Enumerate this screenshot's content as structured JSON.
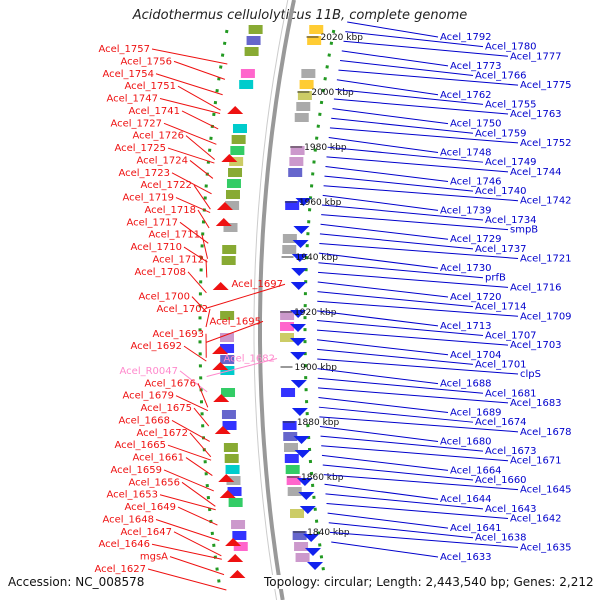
{
  "title": "Acidothermus cellulolyticus 11B, complete genome",
  "footer": {
    "accession": "Accession: NC_008578",
    "topology": "Topology: circular; Length: 2,443,540 bp; Genes: 2,212"
  },
  "colors": {
    "left_label": "#ee1111",
    "left_label_special": "#ff88cc",
    "right_label": "#0000cc",
    "tick_label": "#111111",
    "backbone": "#999999",
    "dots": "#229922"
  },
  "ticks": [
    "2020 kbp",
    "2000 kbp",
    "1980 kbp",
    "1960 kbp",
    "1940 kbp",
    "1920 kbp",
    "1900 kbp",
    "1880 kbp",
    "1860 kbp",
    "1840 kbp"
  ],
  "left_labels": [
    "Acel_1757",
    "Acel_1756",
    "Acel_1754",
    "Acel_1751",
    "Acel_1747",
    "Acel_1741",
    "Acel_1727",
    "Acel_1726",
    "Acel_1725",
    "Acel_1724",
    "Acel_1723",
    "Acel_1722",
    "Acel_1719",
    "Acel_1718",
    "Acel_1717",
    "Acel_1711",
    "Acel_1710",
    "Acel_1712",
    "Acel_1708",
    "Acel_1697",
    "Acel_1700",
    "Acel_1702",
    "Acel_1695",
    "Acel_1693",
    "Acel_1692",
    "Acel_1682",
    "Acel_R0047",
    "Acel_1676",
    "Acel_1679",
    "Acel_1675",
    "Acel_1668",
    "Acel_1672",
    "Acel_1665",
    "Acel_1661",
    "Acel_1659",
    "Acel_1656",
    "Acel_1653",
    "Acel_1649",
    "Acel_1648",
    "Acel_1647",
    "Acel_1646",
    "mgsA",
    "Acel_1627"
  ],
  "right_labels": [
    "Acel_1792",
    "Acel_1780",
    "Acel_1777",
    "Acel_1773",
    "Acel_1766",
    "Acel_1775",
    "Acel_1762",
    "Acel_1755",
    "Acel_1763",
    "Acel_1750",
    "Acel_1759",
    "Acel_1752",
    "Acel_1748",
    "Acel_1749",
    "Acel_1744",
    "Acel_1746",
    "Acel_1740",
    "Acel_1742",
    "Acel_1739",
    "Acel_1734",
    "smpB",
    "Acel_1729",
    "Acel_1737",
    "Acel_1721",
    "Acel_1730",
    "prfB",
    "Acel_1716",
    "Acel_1720",
    "Acel_1714",
    "Acel_1709",
    "Acel_1713",
    "Acel_1707",
    "Acel_1703",
    "Acel_1704",
    "Acel_1701",
    "clpS",
    "Acel_1688",
    "Acel_1681",
    "Acel_1683",
    "Acel_1689",
    "Acel_1674",
    "Acel_1678",
    "Acel_1680",
    "Acel_1673",
    "Acel_1671",
    "Acel_1664",
    "Acel_1660",
    "Acel_1645",
    "Acel_1644",
    "Acel_1643",
    "Acel_1642",
    "Acel_1641",
    "Acel_1638",
    "Acel_1635",
    "Acel_1633"
  ]
}
